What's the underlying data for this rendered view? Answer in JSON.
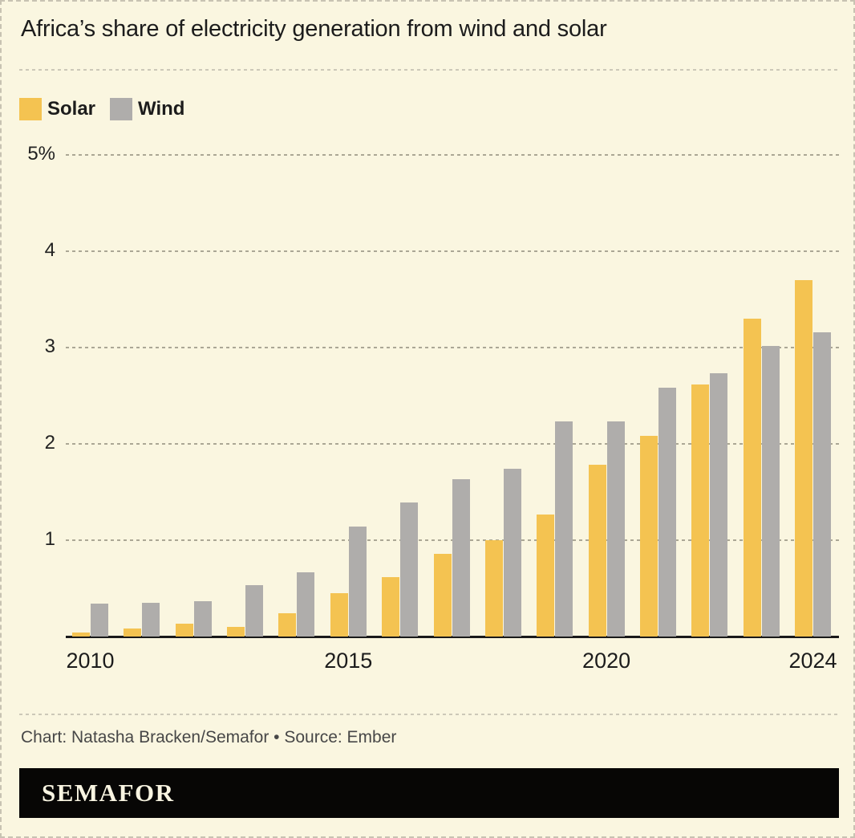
{
  "header": {
    "title": "Africa’s share of electricity generation from wind and solar"
  },
  "legend": {
    "items": [
      {
        "label": "Solar",
        "color": "#f4c351"
      },
      {
        "label": "Wind",
        "color": "#afadab"
      }
    ]
  },
  "chart_data": {
    "type": "bar",
    "title": "Africa’s share of electricity generation from wind and solar",
    "unit": "%",
    "categories": [
      2010,
      2011,
      2012,
      2013,
      2014,
      2015,
      2016,
      2017,
      2018,
      2019,
      2020,
      2021,
      2022,
      2023,
      2024
    ],
    "series": [
      {
        "name": "Solar",
        "color": "#f4c351",
        "values": [
          0.04,
          0.08,
          0.13,
          0.1,
          0.24,
          0.45,
          0.62,
          0.86,
          1.0,
          1.27,
          1.78,
          2.08,
          2.62,
          3.3,
          3.7
        ]
      },
      {
        "name": "Wind",
        "color": "#afadab",
        "values": [
          0.34,
          0.35,
          0.37,
          0.53,
          0.67,
          1.14,
          1.39,
          1.63,
          1.74,
          2.23,
          2.23,
          2.58,
          2.73,
          3.02,
          3.16
        ]
      }
    ],
    "ylim": [
      0,
      5
    ],
    "y_ticks": [
      {
        "value": 1,
        "label": "1"
      },
      {
        "value": 2,
        "label": "2"
      },
      {
        "value": 3,
        "label": "3"
      },
      {
        "value": 4,
        "label": "4"
      },
      {
        "value": 5,
        "label": "5%"
      }
    ],
    "x_ticks": [
      {
        "index": 0,
        "label": "2010"
      },
      {
        "index": 5,
        "label": "2015"
      },
      {
        "index": 10,
        "label": "2020"
      },
      {
        "index": 14,
        "label": "2024"
      }
    ],
    "grid": "horizontal-dashed",
    "legend_position": "top-left"
  },
  "footer": {
    "credit": "Chart: Natasha Bracken/Semafor • Source: Ember",
    "logo_text": "SEMAFOR"
  },
  "colors": {
    "background": "#faf6e0",
    "solar": "#f4c351",
    "wind": "#afadab",
    "text": "#1c1c1c",
    "gridline": "#aba795",
    "axis": "#1a1a1a",
    "border": "#c8c3b2",
    "credit_text": "#474747",
    "logo_bg": "#070605",
    "logo_text_color": "#f8f4e1"
  }
}
